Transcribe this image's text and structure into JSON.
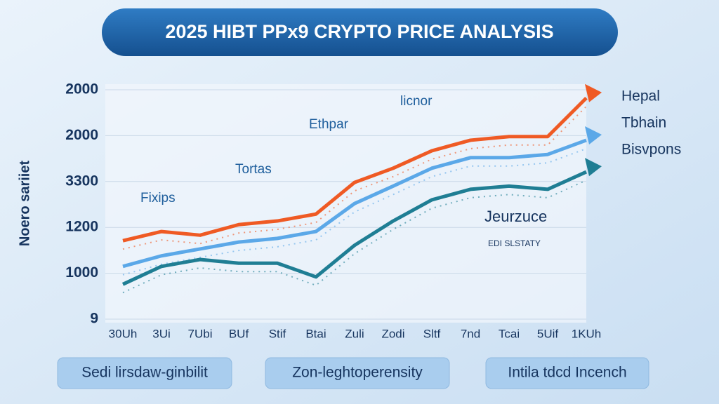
{
  "chart_data": {
    "type": "line",
    "title": "2025 HIBT PPx9 CRYPTO PRICE ANALYSIS",
    "y_label": "Noero sariiet",
    "categories": [
      "30Uh",
      "3Ui",
      "7Ubi",
      "BUf",
      "Stif",
      "Btai",
      "Zuli",
      "Zodi",
      "Sltf",
      "7nd",
      "Tcai",
      "5Uif",
      "1KUh"
    ],
    "ylim": [
      0,
      5
    ],
    "yticks": [
      {
        "value": 0,
        "label": "9"
      },
      {
        "value": 1,
        "label": "1000"
      },
      {
        "value": 2,
        "label": "1200"
      },
      {
        "value": 3,
        "label": "3300"
      },
      {
        "value": 4,
        "label": "2000"
      },
      {
        "value": 5,
        "label": "2000"
      }
    ],
    "grid": true,
    "series": [
      {
        "name": "Hepal",
        "color": "#ef5a24",
        "values": [
          1.71,
          1.91,
          1.83,
          2.06,
          2.14,
          2.29,
          2.98,
          3.29,
          3.67,
          3.9,
          3.98,
          3.98,
          4.82
        ]
      },
      {
        "name": "Tbhain",
        "color": "#5ba8e8",
        "values": [
          1.15,
          1.38,
          1.53,
          1.68,
          1.76,
          1.91,
          2.52,
          2.9,
          3.29,
          3.52,
          3.52,
          3.59,
          3.9
        ]
      },
      {
        "name": "Bisvpons",
        "color": "#1f7e94",
        "values": [
          0.76,
          1.15,
          1.3,
          1.22,
          1.22,
          0.92,
          1.61,
          2.14,
          2.6,
          2.83,
          2.9,
          2.83,
          3.21
        ]
      }
    ],
    "annotations": [
      "Fixips",
      "Tortas",
      "Ethpar",
      "licnor",
      "Jeurzuce",
      "EDI SLSTATY"
    ],
    "buttons": [
      "Sedi lirsdaw-ginbilit",
      "Zon-leghtoperensity",
      "Intila tdcd Incench"
    ]
  }
}
